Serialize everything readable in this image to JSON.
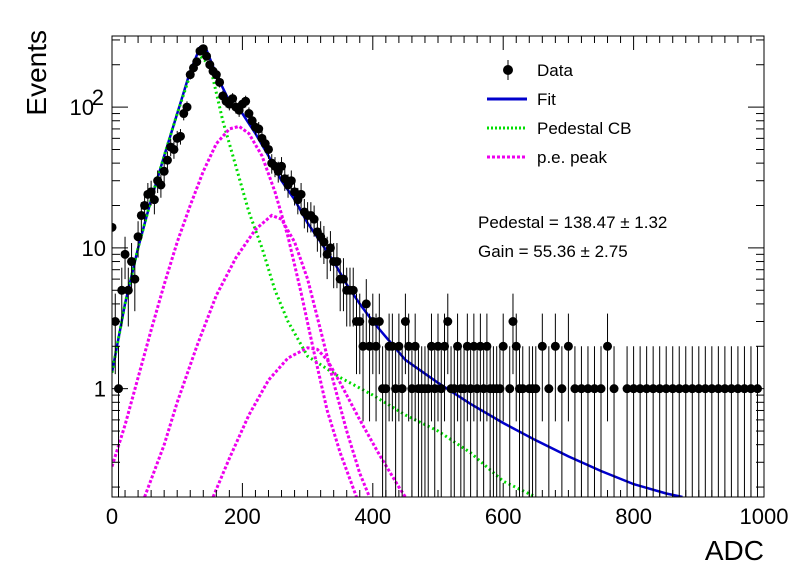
{
  "chart_data": {
    "type": "scatter",
    "xlabel": "ADC",
    "ylabel": "Events",
    "xlim": [
      0,
      1000
    ],
    "ylim": [
      0.17,
      320
    ],
    "yscale": "log",
    "x_ticks": [
      0,
      200,
      400,
      600,
      800,
      1000
    ],
    "y_ticks": [
      {
        "value": 1,
        "label": "1"
      },
      {
        "value": 10,
        "label": "10"
      },
      {
        "value": 100,
        "label": "10",
        "exponent": "2"
      }
    ],
    "legend": {
      "placement": "top-right",
      "entries": [
        {
          "label": "Data",
          "key": "data"
        },
        {
          "label": "Fit",
          "key": "fit"
        },
        {
          "label": "Pedestal CB",
          "key": "pedestal"
        },
        {
          "label": "p.e. peak",
          "key": "pe"
        }
      ]
    },
    "annotations": [
      {
        "key": "pedestal",
        "text": "Pedestal = 138.47 ± 1.32"
      },
      {
        "key": "gain",
        "text": "Gain = 55.36 ± 2.75"
      }
    ],
    "colors": {
      "data": "#000000",
      "fit": "#0000cc",
      "pedestal": "#00dd00",
      "pe": "#ee00ee"
    },
    "series": [
      {
        "name": "Data",
        "kind": "points",
        "points": [
          [
            0,
            14
          ],
          [
            5,
            3
          ],
          [
            10,
            1
          ],
          [
            15,
            5
          ],
          [
            20,
            9
          ],
          [
            25,
            5
          ],
          [
            30,
            8
          ],
          [
            35,
            6
          ],
          [
            40,
            12
          ],
          [
            45,
            17
          ],
          [
            50,
            20
          ],
          [
            55,
            24
          ],
          [
            60,
            25
          ],
          [
            65,
            22
          ],
          [
            70,
            30
          ],
          [
            75,
            28
          ],
          [
            80,
            35
          ],
          [
            85,
            42
          ],
          [
            90,
            52
          ],
          [
            95,
            50
          ],
          [
            100,
            60
          ],
          [
            105,
            62
          ],
          [
            110,
            90
          ],
          [
            115,
            100
          ],
          [
            120,
            170
          ],
          [
            125,
            190
          ],
          [
            130,
            210
          ],
          [
            135,
            250
          ],
          [
            140,
            260
          ],
          [
            145,
            230
          ],
          [
            150,
            200
          ],
          [
            155,
            180
          ],
          [
            160,
            170
          ],
          [
            165,
            150
          ],
          [
            170,
            120
          ],
          [
            175,
            110
          ],
          [
            180,
            105
          ],
          [
            185,
            115
          ],
          [
            190,
            100
          ],
          [
            195,
            95
          ],
          [
            200,
            105
          ],
          [
            205,
            110
          ],
          [
            210,
            90
          ],
          [
            215,
            80
          ],
          [
            220,
            72
          ],
          [
            225,
            70
          ],
          [
            230,
            60
          ],
          [
            235,
            55
          ],
          [
            240,
            50
          ],
          [
            245,
            40
          ],
          [
            250,
            38
          ],
          [
            255,
            35
          ],
          [
            260,
            38
          ],
          [
            265,
            31
          ],
          [
            270,
            28
          ],
          [
            275,
            30
          ],
          [
            280,
            25
          ],
          [
            285,
            22
          ],
          [
            290,
            24
          ],
          [
            295,
            18
          ],
          [
            300,
            17
          ],
          [
            305,
            17
          ],
          [
            310,
            16
          ],
          [
            315,
            13
          ],
          [
            320,
            12
          ],
          [
            325,
            11
          ],
          [
            330,
            9
          ],
          [
            335,
            10
          ],
          [
            340,
            8
          ],
          [
            345,
            8
          ],
          [
            350,
            6
          ],
          [
            355,
            6
          ],
          [
            360,
            5
          ],
          [
            365,
            5
          ],
          [
            370,
            5
          ],
          [
            375,
            3
          ],
          [
            380,
            3
          ],
          [
            385,
            2
          ],
          [
            390,
            4
          ],
          [
            395,
            2
          ],
          [
            400,
            3
          ],
          [
            405,
            2
          ],
          [
            410,
            3
          ],
          [
            415,
            1
          ],
          [
            420,
            1
          ],
          [
            425,
            2
          ],
          [
            430,
            2
          ],
          [
            435,
            1
          ],
          [
            440,
            2
          ],
          [
            445,
            1
          ],
          [
            450,
            3
          ],
          [
            455,
            2
          ],
          [
            460,
            1
          ],
          [
            465,
            2
          ],
          [
            470,
            1
          ],
          [
            475,
            1
          ],
          [
            480,
            1
          ],
          [
            485,
            1
          ],
          [
            490,
            2
          ],
          [
            495,
            1
          ],
          [
            500,
            2
          ],
          [
            505,
            1
          ],
          [
            510,
            2
          ],
          [
            515,
            3
          ],
          [
            520,
            1
          ],
          [
            525,
            1
          ],
          [
            530,
            2
          ],
          [
            535,
            1
          ],
          [
            540,
            1
          ],
          [
            545,
            2
          ],
          [
            550,
            1
          ],
          [
            555,
            2
          ],
          [
            560,
            1
          ],
          [
            565,
            2
          ],
          [
            570,
            1
          ],
          [
            575,
            2
          ],
          [
            580,
            1
          ],
          [
            585,
            1
          ],
          [
            590,
            1
          ],
          [
            595,
            1
          ],
          [
            600,
            2
          ],
          [
            610,
            1
          ],
          [
            615,
            3
          ],
          [
            620,
            2
          ],
          [
            625,
            1
          ],
          [
            630,
            1
          ],
          [
            640,
            1
          ],
          [
            645,
            1
          ],
          [
            650,
            1
          ],
          [
            660,
            2
          ],
          [
            670,
            1
          ],
          [
            680,
            2
          ],
          [
            690,
            1
          ],
          [
            700,
            2
          ],
          [
            710,
            1
          ],
          [
            720,
            1
          ],
          [
            730,
            1
          ],
          [
            740,
            1
          ],
          [
            750,
            1
          ],
          [
            760,
            2
          ],
          [
            770,
            1
          ],
          [
            790,
            1
          ],
          [
            800,
            1
          ],
          [
            810,
            1
          ],
          [
            820,
            1
          ],
          [
            830,
            1
          ],
          [
            840,
            1
          ],
          [
            850,
            1
          ],
          [
            860,
            1
          ],
          [
            870,
            1
          ],
          [
            880,
            1
          ],
          [
            890,
            1
          ],
          [
            900,
            1
          ],
          [
            910,
            1
          ],
          [
            920,
            1
          ],
          [
            930,
            1
          ],
          [
            940,
            1
          ],
          [
            950,
            1
          ],
          [
            960,
            1
          ],
          [
            970,
            1
          ],
          [
            980,
            1
          ],
          [
            990,
            1
          ]
        ]
      },
      {
        "name": "Fit",
        "kind": "line",
        "points": [
          [
            0,
            1.3
          ],
          [
            20,
            4
          ],
          [
            40,
            10
          ],
          [
            60,
            22
          ],
          [
            80,
            45
          ],
          [
            100,
            90
          ],
          [
            120,
            180
          ],
          [
            135,
            265
          ],
          [
            145,
            255
          ],
          [
            160,
            170
          ],
          [
            180,
            110
          ],
          [
            200,
            90
          ],
          [
            220,
            65
          ],
          [
            240,
            45
          ],
          [
            260,
            30
          ],
          [
            280,
            22
          ],
          [
            300,
            15
          ],
          [
            320,
            11
          ],
          [
            340,
            8
          ],
          [
            360,
            5.5
          ],
          [
            380,
            4
          ],
          [
            400,
            3
          ],
          [
            450,
            1.6
          ],
          [
            500,
            1.1
          ],
          [
            550,
            0.78
          ],
          [
            600,
            0.57
          ],
          [
            650,
            0.43
          ],
          [
            700,
            0.33
          ],
          [
            750,
            0.26
          ],
          [
            800,
            0.21
          ],
          [
            850,
            0.18
          ],
          [
            875,
            0.17
          ]
        ]
      },
      {
        "name": "Pedestal CB",
        "kind": "line",
        "points": [
          [
            0,
            1.3
          ],
          [
            20,
            4
          ],
          [
            40,
            10
          ],
          [
            60,
            22
          ],
          [
            80,
            45
          ],
          [
            100,
            90
          ],
          [
            120,
            170
          ],
          [
            135,
            230
          ],
          [
            150,
            200
          ],
          [
            170,
            80
          ],
          [
            190,
            38
          ],
          [
            210,
            18
          ],
          [
            230,
            10
          ],
          [
            250,
            5
          ],
          [
            270,
            3
          ],
          [
            300,
            1.7
          ],
          [
            350,
            1.2
          ],
          [
            400,
            0.9
          ],
          [
            450,
            0.65
          ],
          [
            500,
            0.5
          ],
          [
            550,
            0.35
          ],
          [
            600,
            0.22
          ],
          [
            650,
            0.17
          ]
        ]
      },
      {
        "name": "p.e. peak 1",
        "kind": "line",
        "points": [
          [
            0,
            0.28
          ],
          [
            20,
            0.55
          ],
          [
            40,
            1.2
          ],
          [
            60,
            2.6
          ],
          [
            80,
            5.5
          ],
          [
            100,
            11
          ],
          [
            120,
            20
          ],
          [
            140,
            35
          ],
          [
            160,
            55
          ],
          [
            180,
            70
          ],
          [
            195,
            73
          ],
          [
            210,
            65
          ],
          [
            230,
            45
          ],
          [
            250,
            25
          ],
          [
            270,
            12
          ],
          [
            290,
            4.8
          ],
          [
            310,
            1.8
          ],
          [
            330,
            0.7
          ],
          [
            350,
            0.35
          ],
          [
            375,
            0.17
          ]
        ]
      },
      {
        "name": "p.e. peak 2",
        "kind": "line",
        "points": [
          [
            50,
            0.17
          ],
          [
            80,
            0.4
          ],
          [
            100,
            0.8
          ],
          [
            130,
            2
          ],
          [
            160,
            4.6
          ],
          [
            190,
            8.5
          ],
          [
            220,
            13.5
          ],
          [
            245,
            17
          ],
          [
            260,
            16
          ],
          [
            280,
            11
          ],
          [
            300,
            6
          ],
          [
            320,
            2.6
          ],
          [
            340,
            1.1
          ],
          [
            360,
            0.5
          ],
          [
            380,
            0.25
          ],
          [
            395,
            0.17
          ]
        ]
      },
      {
        "name": "p.e. peak 3",
        "kind": "line",
        "points": [
          [
            155,
            0.17
          ],
          [
            180,
            0.32
          ],
          [
            210,
            0.65
          ],
          [
            240,
            1.15
          ],
          [
            270,
            1.65
          ],
          [
            300,
            1.95
          ],
          [
            315,
            1.9
          ],
          [
            330,
            1.6
          ],
          [
            350,
            1.1
          ],
          [
            380,
            0.6
          ],
          [
            410,
            0.34
          ],
          [
            440,
            0.2
          ],
          [
            450,
            0.17
          ]
        ]
      }
    ]
  }
}
